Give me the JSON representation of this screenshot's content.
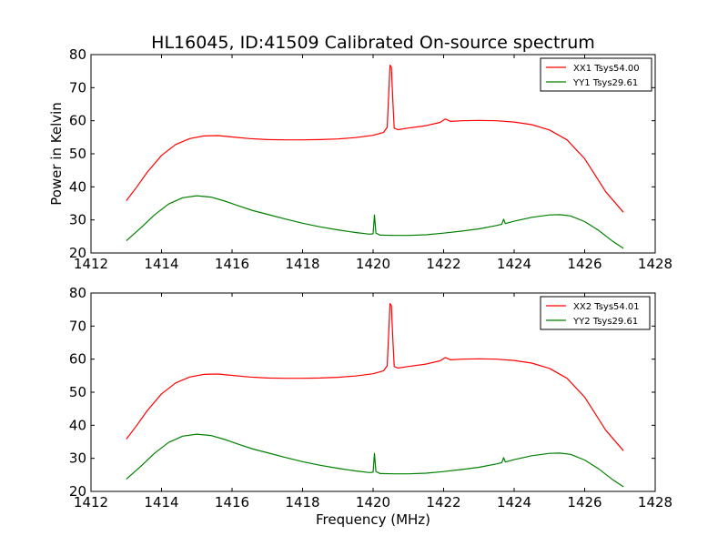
{
  "figure": {
    "title": "HL16045, ID:41509 Calibrated On-source spectrum",
    "ylabel": "Power in Kelvin",
    "xlabel": "Frequency (MHz)"
  },
  "chart_data": [
    {
      "type": "line",
      "title": "HL16045, ID:41509 Calibrated On-source spectrum",
      "xlabel": "",
      "ylabel": "Power in Kelvin",
      "xlim": [
        1412,
        1428
      ],
      "ylim": [
        20,
        80
      ],
      "xticks": [
        1412,
        1414,
        1416,
        1418,
        1420,
        1422,
        1424,
        1426,
        1428
      ],
      "yticks": [
        20,
        30,
        40,
        50,
        60,
        70,
        80
      ],
      "grid": false,
      "legend_position": "top-right",
      "series": [
        {
          "name": "XX1 Tsys54.00",
          "color": "#ff0000",
          "x": [
            1413.0,
            1413.3,
            1413.6,
            1414.0,
            1414.4,
            1414.8,
            1415.2,
            1415.6,
            1416.0,
            1416.5,
            1417.0,
            1417.5,
            1418.0,
            1418.5,
            1419.0,
            1419.5,
            1420.0,
            1420.3,
            1420.4,
            1420.48,
            1420.52,
            1420.56,
            1420.6,
            1420.7,
            1421.0,
            1421.5,
            1421.9,
            1422.05,
            1422.2,
            1422.5,
            1423.0,
            1423.5,
            1424.0,
            1424.5,
            1425.0,
            1425.5,
            1426.0,
            1426.3,
            1426.6,
            1427.1
          ],
          "y": [
            35.8,
            40.0,
            44.5,
            49.5,
            52.8,
            54.6,
            55.4,
            55.5,
            55.1,
            54.6,
            54.3,
            54.2,
            54.2,
            54.3,
            54.5,
            54.9,
            55.6,
            56.5,
            58.0,
            76.8,
            76.2,
            66.0,
            57.8,
            57.3,
            57.8,
            58.5,
            59.5,
            60.5,
            59.8,
            60.0,
            60.1,
            60.0,
            59.6,
            58.8,
            57.2,
            54.2,
            48.5,
            43.5,
            38.5,
            32.3
          ]
        },
        {
          "name": "YY1 Tsys29.61",
          "color": "#008000",
          "x": [
            1413.0,
            1413.4,
            1413.8,
            1414.2,
            1414.6,
            1415.0,
            1415.4,
            1415.8,
            1416.2,
            1416.6,
            1417.0,
            1417.5,
            1418.0,
            1418.5,
            1419.0,
            1419.5,
            1419.9,
            1420.0,
            1420.04,
            1420.08,
            1420.2,
            1420.6,
            1421.0,
            1421.5,
            1422.0,
            1422.5,
            1423.0,
            1423.5,
            1423.65,
            1423.7,
            1423.75,
            1424.0,
            1424.5,
            1425.0,
            1425.3,
            1425.6,
            1426.0,
            1426.4,
            1426.8,
            1427.1
          ],
          "y": [
            23.7,
            27.5,
            31.5,
            34.8,
            36.7,
            37.3,
            36.9,
            35.7,
            34.2,
            32.8,
            31.7,
            30.3,
            29.0,
            27.9,
            27.0,
            26.2,
            25.7,
            25.8,
            31.5,
            26.0,
            25.4,
            25.3,
            25.3,
            25.5,
            26.0,
            26.6,
            27.3,
            28.3,
            28.7,
            30.2,
            28.9,
            29.6,
            30.8,
            31.5,
            31.6,
            31.2,
            29.5,
            26.8,
            23.5,
            21.4
          ]
        }
      ]
    },
    {
      "type": "line",
      "title": "",
      "xlabel": "Frequency (MHz)",
      "ylabel": "",
      "xlim": [
        1412,
        1428
      ],
      "ylim": [
        20,
        80
      ],
      "xticks": [
        1412,
        1414,
        1416,
        1418,
        1420,
        1422,
        1424,
        1426,
        1428
      ],
      "yticks": [
        20,
        30,
        40,
        50,
        60,
        70,
        80
      ],
      "grid": false,
      "legend_position": "top-right",
      "series": [
        {
          "name": "XX2 Tsys54.01",
          "color": "#ff0000",
          "x": [
            1413.0,
            1413.3,
            1413.6,
            1414.0,
            1414.4,
            1414.8,
            1415.2,
            1415.6,
            1416.0,
            1416.5,
            1417.0,
            1417.5,
            1418.0,
            1418.5,
            1419.0,
            1419.5,
            1420.0,
            1420.3,
            1420.4,
            1420.48,
            1420.52,
            1420.56,
            1420.6,
            1420.7,
            1421.0,
            1421.5,
            1421.9,
            1422.05,
            1422.2,
            1422.5,
            1423.0,
            1423.5,
            1424.0,
            1424.5,
            1425.0,
            1425.5,
            1426.0,
            1426.3,
            1426.6,
            1427.1
          ],
          "y": [
            35.8,
            40.0,
            44.5,
            49.5,
            52.8,
            54.6,
            55.4,
            55.5,
            55.1,
            54.6,
            54.3,
            54.2,
            54.2,
            54.3,
            54.5,
            54.9,
            55.6,
            56.5,
            58.0,
            76.8,
            76.2,
            66.0,
            57.8,
            57.3,
            57.8,
            58.5,
            59.5,
            60.5,
            59.8,
            60.0,
            60.1,
            60.0,
            59.6,
            58.8,
            57.2,
            54.2,
            48.5,
            43.5,
            38.5,
            32.3
          ]
        },
        {
          "name": "YY2 Tsys29.61",
          "color": "#008000",
          "x": [
            1413.0,
            1413.4,
            1413.8,
            1414.2,
            1414.6,
            1415.0,
            1415.4,
            1415.8,
            1416.2,
            1416.6,
            1417.0,
            1417.5,
            1418.0,
            1418.5,
            1419.0,
            1419.5,
            1419.9,
            1420.0,
            1420.04,
            1420.08,
            1420.2,
            1420.6,
            1421.0,
            1421.5,
            1422.0,
            1422.5,
            1423.0,
            1423.5,
            1423.65,
            1423.7,
            1423.75,
            1424.0,
            1424.5,
            1425.0,
            1425.3,
            1425.6,
            1426.0,
            1426.4,
            1426.8,
            1427.1
          ],
          "y": [
            23.7,
            27.5,
            31.5,
            34.8,
            36.7,
            37.3,
            36.9,
            35.7,
            34.2,
            32.8,
            31.7,
            30.3,
            29.0,
            27.9,
            27.0,
            26.2,
            25.7,
            25.8,
            31.5,
            26.0,
            25.4,
            25.3,
            25.3,
            25.5,
            26.0,
            26.6,
            27.3,
            28.3,
            28.7,
            30.2,
            28.9,
            29.6,
            30.8,
            31.5,
            31.6,
            31.2,
            29.5,
            26.8,
            23.5,
            21.4
          ]
        }
      ]
    }
  ]
}
